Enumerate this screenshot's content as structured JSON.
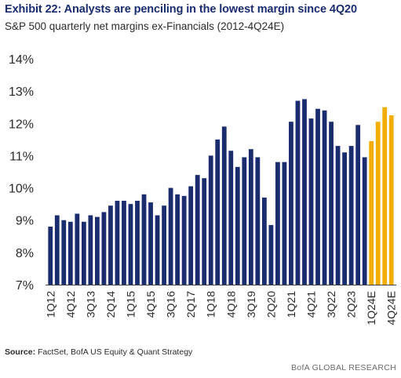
{
  "header": {
    "title": "Exhibit 22: Analysts are penciling in the lowest margin since 4Q20",
    "subtitle": "S&P 500 quarterly net margins ex-Financials (2012-4Q24E)"
  },
  "footer": {
    "source_label": "Source:",
    "source_text": "FactSet, BofA US Equity & Quant Strategy",
    "credit": "BofA GLOBAL RESEARCH"
  },
  "colors": {
    "actual": "#1b2c6e",
    "estimate": "#f2ad00"
  },
  "chart_data": {
    "type": "bar",
    "title": "Exhibit 22: Analysts are penciling in the lowest margin since 4Q20",
    "xlabel": "",
    "ylabel": "",
    "ylim": [
      7,
      14
    ],
    "yticks": [
      "7%",
      "8%",
      "9%",
      "10%",
      "11%",
      "12%",
      "13%",
      "14%"
    ],
    "grid": false,
    "legend": "none",
    "categories": [
      "1Q12",
      "2Q12",
      "3Q12",
      "4Q12",
      "1Q13",
      "2Q13",
      "3Q13",
      "4Q13",
      "1Q14",
      "2Q14",
      "3Q14",
      "4Q14",
      "1Q15",
      "2Q15",
      "3Q15",
      "4Q15",
      "1Q16",
      "2Q16",
      "3Q16",
      "4Q16",
      "1Q17",
      "2Q17",
      "3Q17",
      "4Q17",
      "1Q18",
      "2Q18",
      "3Q18",
      "4Q18",
      "1Q19",
      "2Q19",
      "3Q19",
      "4Q19",
      "1Q20",
      "2Q20",
      "3Q20",
      "4Q20",
      "1Q21",
      "2Q21",
      "3Q21",
      "4Q21",
      "1Q22",
      "2Q22",
      "3Q22",
      "4Q22",
      "1Q23",
      "2Q23",
      "3Q23",
      "4Q23",
      "1Q24E",
      "2Q24E",
      "3Q24E",
      "4Q24E"
    ],
    "visible_tick_labels": [
      "1Q12",
      "4Q12",
      "3Q13",
      "2Q14",
      "1Q15",
      "4Q15",
      "3Q16",
      "2Q17",
      "1Q18",
      "4Q18",
      "3Q19",
      "2Q20",
      "1Q21",
      "4Q21",
      "3Q22",
      "2Q23",
      "1Q24E",
      "4Q24E"
    ],
    "values": [
      8.8,
      9.15,
      9.0,
      8.95,
      9.2,
      8.95,
      9.15,
      9.1,
      9.25,
      9.45,
      9.6,
      9.6,
      9.5,
      9.6,
      9.8,
      9.55,
      9.15,
      9.45,
      10.0,
      9.8,
      9.75,
      10.05,
      10.4,
      10.3,
      11.0,
      11.5,
      11.9,
      11.15,
      10.65,
      10.95,
      11.2,
      10.95,
      9.7,
      8.85,
      10.8,
      10.8,
      12.05,
      12.7,
      12.75,
      12.15,
      12.45,
      12.4,
      12.05,
      11.3,
      11.1,
      11.3,
      11.95,
      10.95,
      11.45,
      12.05,
      12.5,
      12.25
    ],
    "is_estimate": [
      false,
      false,
      false,
      false,
      false,
      false,
      false,
      false,
      false,
      false,
      false,
      false,
      false,
      false,
      false,
      false,
      false,
      false,
      false,
      false,
      false,
      false,
      false,
      false,
      false,
      false,
      false,
      false,
      false,
      false,
      false,
      false,
      false,
      false,
      false,
      false,
      false,
      false,
      false,
      false,
      false,
      false,
      false,
      false,
      false,
      false,
      false,
      false,
      true,
      true,
      true,
      true
    ]
  }
}
